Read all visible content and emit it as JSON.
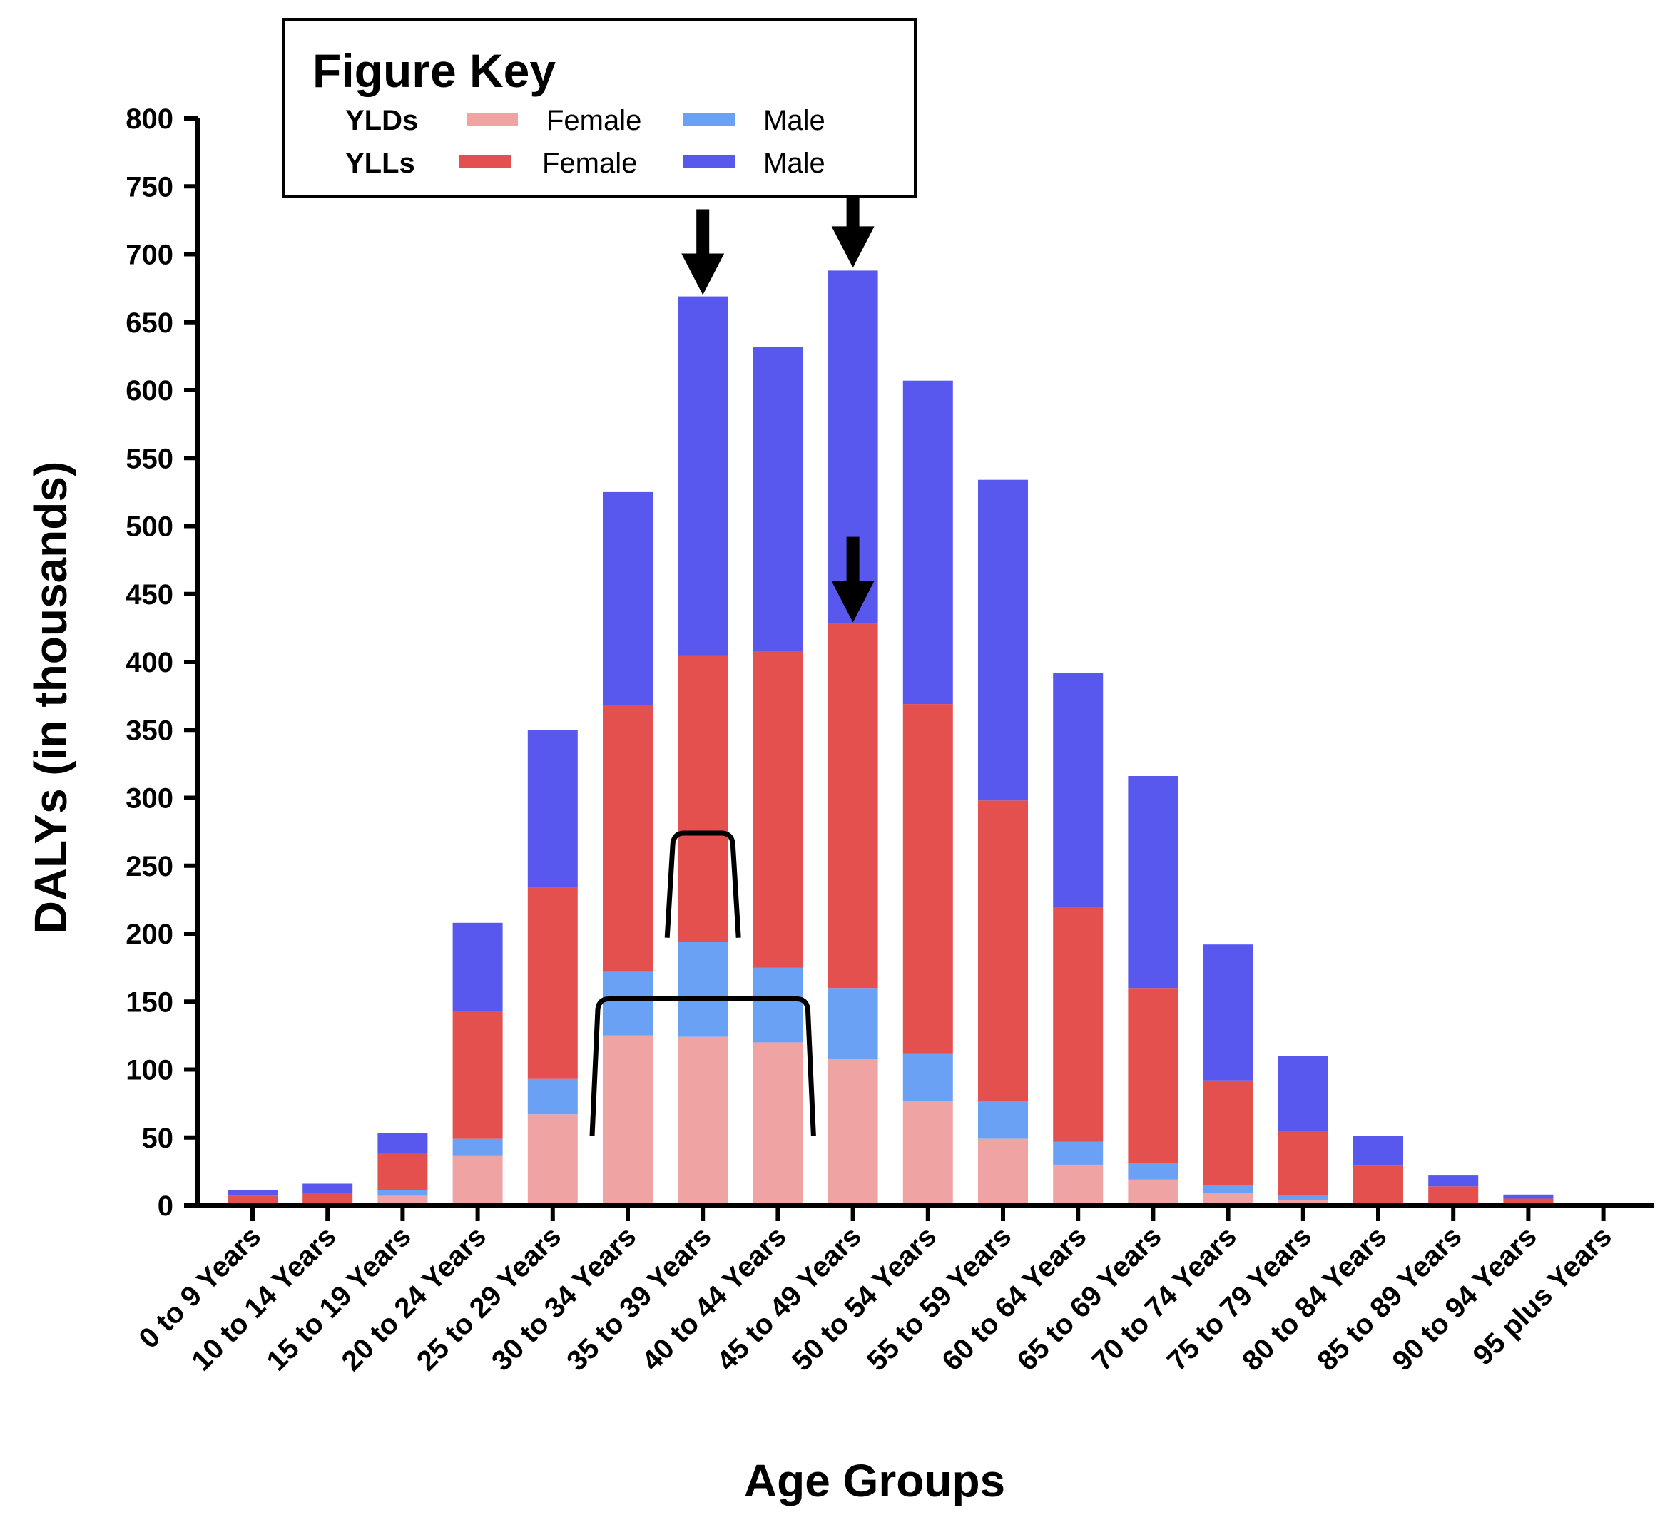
{
  "chart_data": {
    "type": "bar",
    "stacked": true,
    "title": "",
    "xlabel": "Age Groups",
    "ylabel": "DALYs (in thousands)",
    "ylim": [
      0,
      800
    ],
    "yticks": [
      0,
      50,
      100,
      150,
      200,
      250,
      300,
      350,
      400,
      450,
      500,
      550,
      600,
      650,
      700,
      750,
      800
    ],
    "categories": [
      "0 to 9 Years",
      "10 to 14 Years",
      "15 to 19 Years",
      "20 to 24 Years",
      "25 to 29 Years",
      "30 to 34 Years",
      "35 to 39 Years",
      "40 to 44 Years",
      "45 to 49 Years",
      "50 to 54 Years",
      "55 to 59 Years",
      "60 to 64 Years",
      "65 to 69 Years",
      "70 to 74 Years",
      "75 to 79 Years",
      "80 to 84 Years",
      "85 to 89 Years",
      "90 to 94 Years",
      "95 plus Years"
    ],
    "series": [
      {
        "name": "YLDs Female",
        "color": "#f0a3a3",
        "values": [
          1,
          1,
          7,
          37,
          67,
          125,
          124,
          120,
          108,
          77,
          49,
          30,
          19,
          9,
          4,
          1,
          1,
          0,
          0
        ]
      },
      {
        "name": "YLDs Male",
        "color": "#6aa1f4",
        "values": [
          1,
          1,
          4,
          12,
          26,
          47,
          70,
          55,
          52,
          35,
          28,
          17,
          12,
          6,
          3,
          1,
          0,
          0,
          0
        ]
      },
      {
        "name": "YLLs Female",
        "color": "#e4504d",
        "values": [
          5,
          7,
          27,
          94,
          141,
          196,
          211,
          233,
          268,
          257,
          221,
          172,
          129,
          77,
          48,
          27,
          13,
          5,
          0
        ]
      },
      {
        "name": "YLLs Male",
        "color": "#5858ee",
        "values": [
          4,
          7,
          15,
          65,
          116,
          157,
          264,
          224,
          260,
          238,
          236,
          173,
          156,
          100,
          55,
          22,
          8,
          3,
          0
        ]
      }
    ],
    "legend": {
      "title": "Figure Key",
      "position": "top-left",
      "rows": [
        {
          "label": "YLDs",
          "female": "Female",
          "male": "Male",
          "female_color": "#f0a3a3",
          "male_color": "#6aa1f4"
        },
        {
          "label": "YLLs",
          "female": "Female",
          "male": "Male",
          "female_color": "#e4504d",
          "male_color": "#5858ee"
        }
      ]
    },
    "annotations": [
      {
        "type": "down-arrow",
        "category": "35 to 39 Years",
        "points_to_value": 668
      },
      {
        "type": "down-arrow",
        "category": "45 to 49 Years",
        "points_to_value": 688
      },
      {
        "type": "down-arrow",
        "category": "45 to 49 Years",
        "points_to_value": 427
      },
      {
        "type": "bracket",
        "from_category": "35 to 39 Years",
        "to_category": "35 to 39 Years",
        "level": 274,
        "down_to": 197
      },
      {
        "type": "bracket",
        "from_category": "30 to 34 Years",
        "to_category": "40 to 44 Years",
        "level": 152,
        "down_to": 51
      }
    ]
  }
}
